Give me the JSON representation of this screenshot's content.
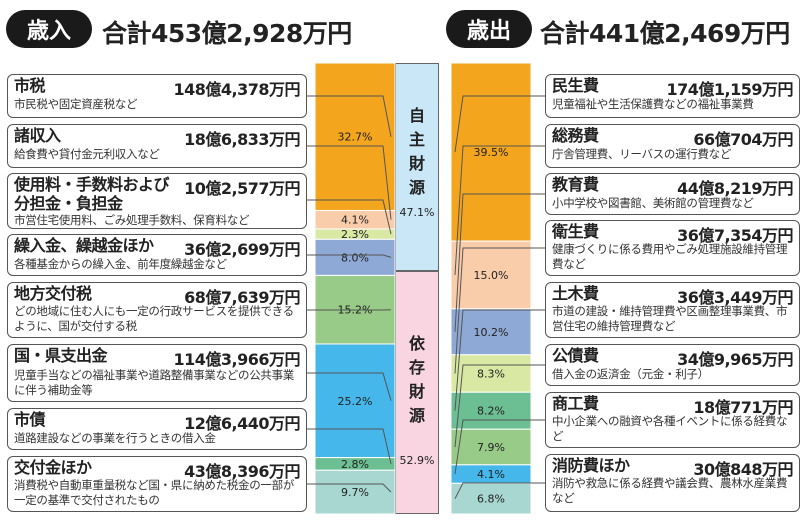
{
  "revenue": {
    "badge": "歳入",
    "total": "合計453億2,928万円",
    "items": [
      {
        "name": "市税",
        "amount": "148億4,378万円",
        "desc": "市民税や固定資産税など"
      },
      {
        "name": "諸収入",
        "amount": "18億6,833万円",
        "desc": "給食費や貸付金元利収入など"
      },
      {
        "name": "使用料・手数料および\n分担金・負担金",
        "amount": "10億2,577万円",
        "desc": "市営住宅使用料、ごみ処理手数料、保育料など"
      },
      {
        "name": "繰入金、繰越金ほか",
        "amount": "36億2,699万円",
        "desc": "各種基金からの繰入金、前年度繰越金など"
      },
      {
        "name": "地方交付税",
        "amount": "68億7,639万円",
        "desc": "どの地域に住む人にも一定の行政サービスを提供できるように、国が交付する税"
      },
      {
        "name": "国・県支出金",
        "amount": "114億3,966万円",
        "desc": "児童手当などの福祉事業や道路整備事業などの公共事業に伴う補助金等"
      },
      {
        "name": "市債",
        "amount": "12億6,440万円",
        "desc": "道路建設などの事業を行うときの借入金"
      },
      {
        "name": "交付金ほか",
        "amount": "43億8,396万円",
        "desc": "消費税や自動車重量税など国・県に納めた税金の一部が一定の基準で交付されたもの"
      }
    ],
    "groups": [
      {
        "label": "自主財源",
        "pct": "47.1%",
        "color": "#c9e7f7"
      },
      {
        "label": "依存財源",
        "pct": "52.9%",
        "color": "#f8d5e0"
      }
    ]
  },
  "expenditure": {
    "badge": "歳出",
    "total": "合計441億2,469万円",
    "items": [
      {
        "name": "民生費",
        "amount": "174億1,159万円",
        "desc": "児童福祉や生活保護費などの福祉事業費"
      },
      {
        "name": "総務費",
        "amount": "66億704万円",
        "desc": "庁舎管理費、リーバスの運行費など"
      },
      {
        "name": "教育費",
        "amount": "44億8,219万円",
        "desc": "小中学校や図書館、美術館の管理費など"
      },
      {
        "name": "衛生費",
        "amount": "36億7,354万円",
        "desc": "健康づくりに係る費用やごみ処理施設維持管理費など"
      },
      {
        "name": "土木費",
        "amount": "36億3,449万円",
        "desc": "市道の建設・維持管理費や区画整理事業費、市営住宅の維持管理費など"
      },
      {
        "name": "公債費",
        "amount": "34億9,965万円",
        "desc": "借入金の返済金（元金・利子）"
      },
      {
        "name": "商工費",
        "amount": "18億771万円",
        "desc": "中小企業への融資や各種イベントに係る経費など"
      },
      {
        "name": "消防費ほか",
        "amount": "30億848万円",
        "desc": "消防や救急に係る経費や議会費、農林水産業費など"
      }
    ]
  },
  "chart_data": [
    {
      "type": "bar",
      "title": "歳入",
      "categories": [
        "市税",
        "諸収入",
        "使用料・手数料および分担金・負担金",
        "繰入金、繰越金ほか",
        "地方交付税",
        "国・県支出金",
        "市債",
        "交付金ほか"
      ],
      "values": [
        32.7,
        4.1,
        2.3,
        8.0,
        15.2,
        25.2,
        2.8,
        9.7
      ],
      "labels": [
        "32.7%",
        "4.1%",
        "2.3%",
        "8.0%",
        "15.2%",
        "25.2%",
        "2.8%",
        "9.7%"
      ],
      "colors": [
        "#f3a51d",
        "#f9ccaa",
        "#d9e8a3",
        "#8fa9d6",
        "#97cb87",
        "#45b7ea",
        "#6cbf93",
        "#a8d7d1"
      ]
    },
    {
      "type": "bar",
      "title": "歳出",
      "categories": [
        "民生費",
        "総務費",
        "教育費",
        "衛生費",
        "土木費",
        "公債費",
        "商工費",
        "消防費ほか"
      ],
      "values": [
        39.5,
        15.0,
        10.2,
        8.3,
        8.2,
        7.9,
        4.1,
        6.8
      ],
      "labels": [
        "39.5%",
        "15.0%",
        "10.2%",
        "8.3%",
        "8.2%",
        "7.9%",
        "4.1%",
        "6.8%"
      ],
      "colors": [
        "#f3a51d",
        "#f9ccaa",
        "#8fa9d6",
        "#d9e8a3",
        "#6cbf93",
        "#97cb87",
        "#45b7ea",
        "#a8d7d1"
      ]
    }
  ]
}
